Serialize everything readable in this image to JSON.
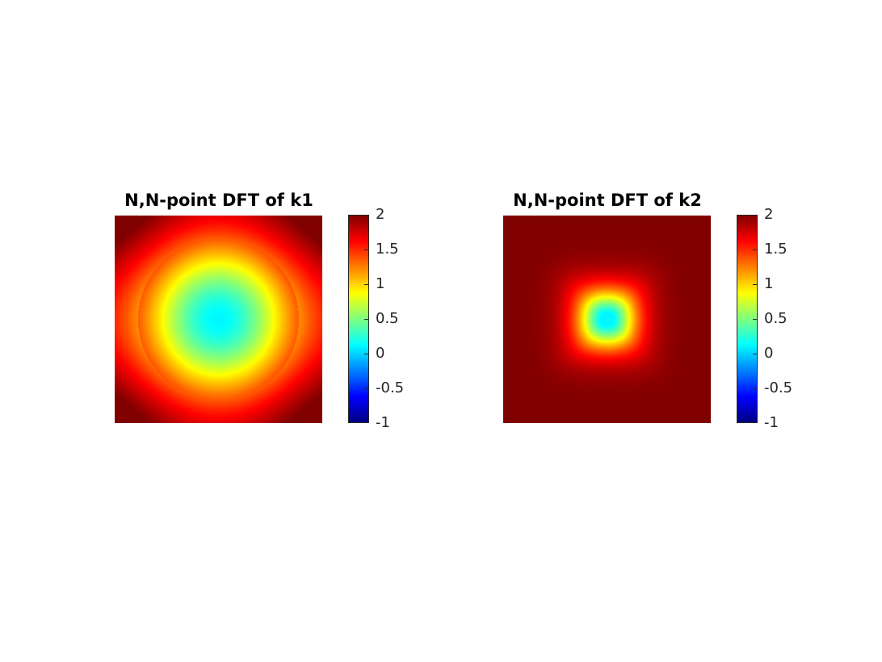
{
  "chart_data": [
    {
      "type": "heatmap",
      "title": "N,N-point DFT of k1",
      "colormap": "jet",
      "clim": [
        -1,
        2
      ],
      "colorbar_ticks": [
        "2",
        "1.5",
        "1",
        "0.5",
        "0",
        "-0.5",
        "-1"
      ],
      "colorbar_tick_values": [
        2,
        1.5,
        1,
        0.5,
        0,
        -0.5,
        -1
      ],
      "center_value": 0.1,
      "edge_mid_value": 1.7,
      "corner_value": 2.0,
      "axes_visible": false
    },
    {
      "type": "heatmap",
      "title": "N,N-point DFT of k2",
      "colormap": "jet",
      "clim": [
        -1,
        2
      ],
      "colorbar_ticks": [
        "2",
        "1.5",
        "1",
        "0.5",
        "0",
        "-0.5",
        "-1"
      ],
      "colorbar_tick_values": [
        2,
        1.5,
        1,
        0.5,
        0,
        -0.5,
        -1
      ],
      "center_value": 0.1,
      "background_value": 2.0,
      "axes_visible": false
    }
  ]
}
